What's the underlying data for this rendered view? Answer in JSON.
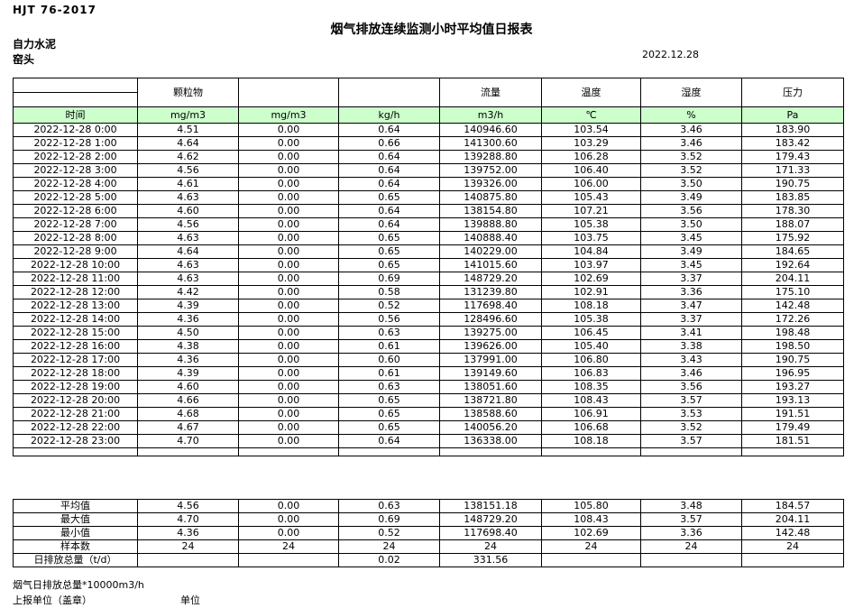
{
  "meta": {
    "standard": "HJT  76-2017",
    "title": "烟气排放连续监测小时平均值日报表",
    "company": "自力水泥",
    "location": "窑头",
    "date": "2022.12.28"
  },
  "colors": {
    "header_green": "#ccffcc",
    "border": "#000000"
  },
  "table": {
    "group_headers": [
      "颗粒物",
      "",
      "",
      "流量",
      "温度",
      "湿度",
      "压力"
    ],
    "unit_row": [
      "时间",
      "mg/m3",
      "mg/m3",
      "kg/h",
      "m3/h",
      "℃",
      "%",
      "Pa"
    ],
    "rows": [
      [
        "2022-12-28 0:00",
        "4.51",
        "0.00",
        "0.64",
        "140946.60",
        "103.54",
        "3.46",
        "183.90"
      ],
      [
        "2022-12-28 1:00",
        "4.64",
        "0.00",
        "0.66",
        "141300.60",
        "103.29",
        "3.46",
        "183.42"
      ],
      [
        "2022-12-28 2:00",
        "4.62",
        "0.00",
        "0.64",
        "139288.80",
        "106.28",
        "3.52",
        "179.43"
      ],
      [
        "2022-12-28 3:00",
        "4.56",
        "0.00",
        "0.64",
        "139752.00",
        "106.40",
        "3.52",
        "171.33"
      ],
      [
        "2022-12-28 4:00",
        "4.61",
        "0.00",
        "0.64",
        "139326.00",
        "106.00",
        "3.50",
        "190.75"
      ],
      [
        "2022-12-28 5:00",
        "4.63",
        "0.00",
        "0.65",
        "140875.80",
        "105.43",
        "3.49",
        "183.85"
      ],
      [
        "2022-12-28 6:00",
        "4.60",
        "0.00",
        "0.64",
        "138154.80",
        "107.21",
        "3.56",
        "178.30"
      ],
      [
        "2022-12-28 7:00",
        "4.56",
        "0.00",
        "0.64",
        "139888.80",
        "105.38",
        "3.50",
        "188.07"
      ],
      [
        "2022-12-28 8:00",
        "4.63",
        "0.00",
        "0.65",
        "140888.40",
        "103.75",
        "3.45",
        "175.92"
      ],
      [
        "2022-12-28 9:00",
        "4.64",
        "0.00",
        "0.65",
        "140229.00",
        "104.84",
        "3.49",
        "184.65"
      ],
      [
        "2022-12-28 10:00",
        "4.63",
        "0.00",
        "0.65",
        "141015.60",
        "103.97",
        "3.45",
        "192.64"
      ],
      [
        "2022-12-28 11:00",
        "4.63",
        "0.00",
        "0.69",
        "148729.20",
        "102.69",
        "3.37",
        "204.11"
      ],
      [
        "2022-12-28 12:00",
        "4.42",
        "0.00",
        "0.58",
        "131239.80",
        "102.91",
        "3.36",
        "175.10"
      ],
      [
        "2022-12-28 13:00",
        "4.39",
        "0.00",
        "0.52",
        "117698.40",
        "108.18",
        "3.47",
        "142.48"
      ],
      [
        "2022-12-28 14:00",
        "4.36",
        "0.00",
        "0.56",
        "128496.60",
        "105.38",
        "3.37",
        "172.26"
      ],
      [
        "2022-12-28 15:00",
        "4.50",
        "0.00",
        "0.63",
        "139275.00",
        "106.45",
        "3.41",
        "198.48"
      ],
      [
        "2022-12-28 16:00",
        "4.38",
        "0.00",
        "0.61",
        "139626.00",
        "105.40",
        "3.38",
        "198.50"
      ],
      [
        "2022-12-28 17:00",
        "4.36",
        "0.00",
        "0.60",
        "137991.00",
        "106.80",
        "3.43",
        "190.75"
      ],
      [
        "2022-12-28 18:00",
        "4.39",
        "0.00",
        "0.61",
        "139149.60",
        "106.83",
        "3.46",
        "196.95"
      ],
      [
        "2022-12-28 19:00",
        "4.60",
        "0.00",
        "0.63",
        "138051.60",
        "108.35",
        "3.56",
        "193.27"
      ],
      [
        "2022-12-28 20:00",
        "4.66",
        "0.00",
        "0.65",
        "138721.80",
        "108.43",
        "3.57",
        "193.13"
      ],
      [
        "2022-12-28 21:00",
        "4.68",
        "0.00",
        "0.65",
        "138588.60",
        "106.91",
        "3.53",
        "191.51"
      ],
      [
        "2022-12-28 22:00",
        "4.67",
        "0.00",
        "0.65",
        "140056.20",
        "106.68",
        "3.52",
        "179.49"
      ],
      [
        "2022-12-28 23:00",
        "4.70",
        "0.00",
        "0.64",
        "136338.00",
        "108.18",
        "3.57",
        "181.51"
      ]
    ],
    "summary": [
      [
        "平均值",
        "4.56",
        "0.00",
        "0.63",
        "138151.18",
        "105.80",
        "3.48",
        "184.57"
      ],
      [
        "最大值",
        "4.70",
        "0.00",
        "0.69",
        "148729.20",
        "108.43",
        "3.57",
        "204.11"
      ],
      [
        "最小值",
        "4.36",
        "0.00",
        "0.52",
        "117698.40",
        "102.69",
        "3.36",
        "142.48"
      ],
      [
        "样本数",
        "24",
        "24",
        "24",
        "24",
        "24",
        "24",
        "24"
      ],
      [
        "日排放总量（t/d）",
        "",
        "",
        "0.02",
        "331.56",
        "",
        "",
        ""
      ]
    ]
  },
  "footer": {
    "note": "烟气日排放总量*10000m3/h",
    "report_unit": "上报单位（盖章）",
    "unit_label": "单位"
  }
}
